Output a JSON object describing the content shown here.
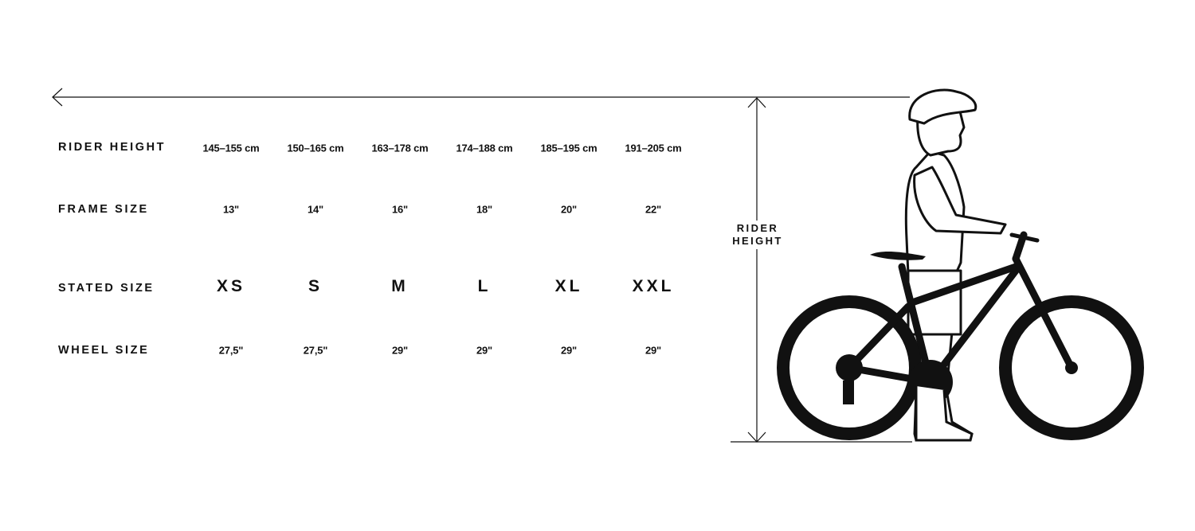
{
  "rows": [
    {
      "label": "RIDER HEIGHT",
      "values": [
        "145–155 cm",
        "150–165 cm",
        "163–178 cm",
        "174–188 cm",
        "185–195 cm",
        "191–205 cm"
      ]
    },
    {
      "label": "FRAME SIZE",
      "values": [
        "13\"",
        "14\"",
        "16\"",
        "18\"",
        "20\"",
        "22\""
      ]
    },
    {
      "label": "STATED SIZE",
      "values": [
        "XS",
        "S",
        "M",
        "L",
        "XL",
        "XXL"
      ]
    },
    {
      "label": "WHEEL SIZE",
      "values": [
        "27,5\"",
        "27,5\"",
        "29\"",
        "29\"",
        "29\"",
        "29\""
      ]
    }
  ],
  "illustration": {
    "dimension_label_line1": "RIDER",
    "dimension_label_line2": "HEIGHT",
    "icons": [
      "arrow-left-icon",
      "dimension-arrow-icon",
      "rider-with-bike-illustration"
    ]
  },
  "colors": {
    "ink": "#111111",
    "background": "#ffffff"
  }
}
